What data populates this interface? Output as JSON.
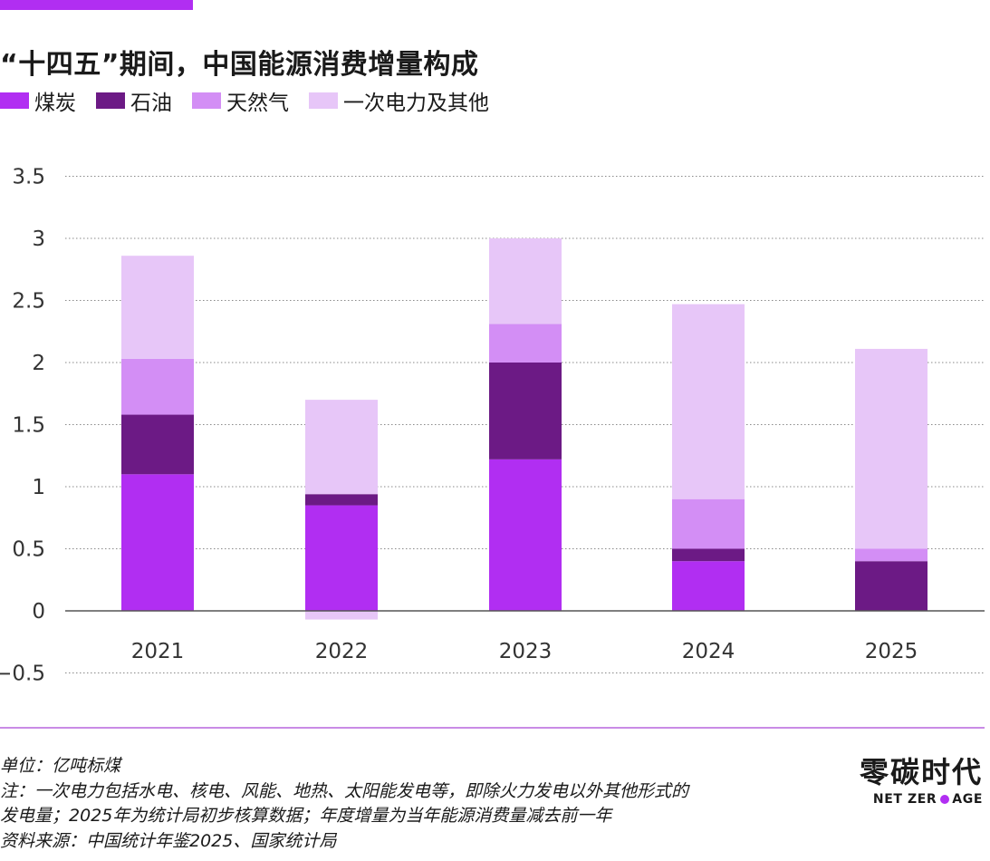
{
  "header": {
    "title": "“十四五”期间，中国能源消费增量构成"
  },
  "colors": {
    "coal": "#b12ef2",
    "oil": "#6c1a85",
    "gas": "#d38ef5",
    "electric": "#e7c6f8",
    "accent": "#b12ef2",
    "divider": "#c98be6"
  },
  "chart_data": {
    "type": "bar",
    "stacked": true,
    "title": "“十四五”期间，中国能源消费增量构成",
    "categories": [
      "2021",
      "2022",
      "2023",
      "2024",
      "2025"
    ],
    "series": [
      {
        "name": "煤炭",
        "color_key": "coal",
        "values": [
          1.1,
          0.85,
          1.22,
          0.4,
          0
        ]
      },
      {
        "name": "石油",
        "color_key": "oil",
        "values": [
          0.48,
          0.09,
          0.78,
          0.1,
          0.4
        ]
      },
      {
        "name": "天然气",
        "color_key": "gas",
        "values": [
          0.45,
          0,
          0.31,
          0.4,
          0.1
        ]
      },
      {
        "name": "一次电力及其他",
        "color_key": "electric",
        "values": [
          0.83,
          0.76,
          0.69,
          1.57,
          1.61
        ]
      }
    ],
    "negative_values": {
      "2022": {
        "series": "一次电力及其他",
        "value": -0.07
      }
    },
    "totals": [
      2.86,
      1.63,
      3.0,
      2.47,
      2.11
    ],
    "ylim": [
      -0.5,
      3.5
    ],
    "yticks": [
      3.5,
      3,
      2.5,
      2,
      1.5,
      1,
      0.5,
      0,
      -0.5
    ],
    "ytick_labels": [
      "3.5",
      "3",
      "2.5",
      "2",
      "1.5",
      "1",
      "0.5",
      "0",
      "−0.5"
    ],
    "grid": true,
    "legend_position": "top-left",
    "xlabel": "",
    "ylabel": ""
  },
  "footer": {
    "unit": "单位：亿吨标煤",
    "note_line1": "注：一次电力包括水电、核电、风能、地热、太阳能发电等，即除火力发电以外其他形式的",
    "note_line2": "发电量；2025年为统计局初步核算数据；年度增量为当年能源消费量减去前一年",
    "source": "资料来源：中国统计年鉴2025、国家统计局"
  },
  "logo": {
    "cn": "零碳时代",
    "en_left": "NET ZER",
    "en_right": "AGE"
  }
}
